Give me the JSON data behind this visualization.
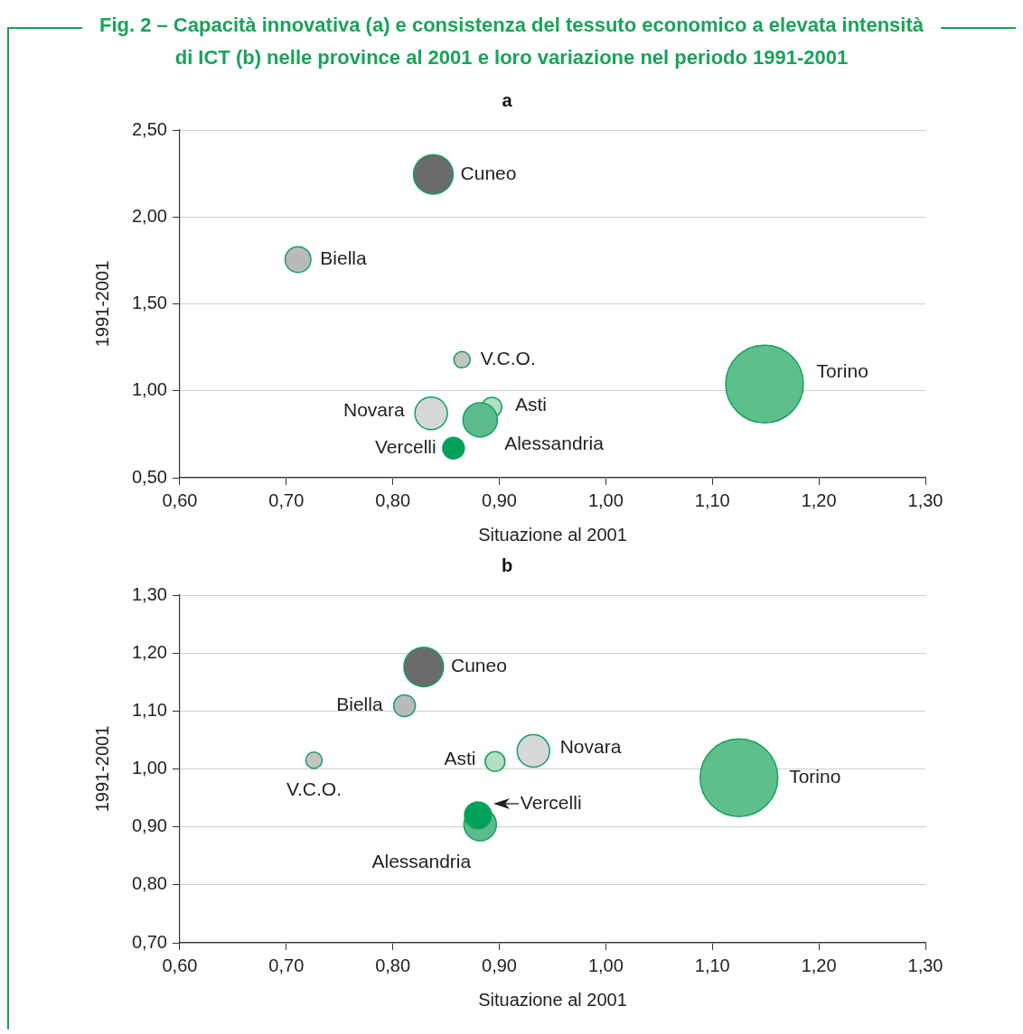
{
  "chart_data": [
    {
      "type": "bubble",
      "title": "Fig. 2 – Capacità innovativa (a) e consistenza del tessuto economico a elevata intensità di ICT (b) nelle province al 2001 e loro variazione nel periodo 1991-2001",
      "subtitle": "a",
      "xlabel": "Situazione al 2001",
      "ylabel": "1991-2001",
      "xlim": [
        0.6,
        1.3
      ],
      "ylim": [
        0.5,
        2.5
      ],
      "xticks": [
        {
          "value": 0.6,
          "label": "0,60"
        },
        {
          "value": 0.7,
          "label": "0,70"
        },
        {
          "value": 0.8,
          "label": "0,80"
        },
        {
          "value": 0.9,
          "label": "0,90"
        },
        {
          "value": 1.0,
          "label": "1,00"
        },
        {
          "value": 1.1,
          "label": "1,10"
        },
        {
          "value": 1.2,
          "label": "1,20"
        },
        {
          "value": 1.3,
          "label": "1,30"
        }
      ],
      "yticks": [
        {
          "value": 0.5,
          "label": "0,50"
        },
        {
          "value": 1.0,
          "label": "1,00"
        },
        {
          "value": 1.5,
          "label": "1,50"
        },
        {
          "value": 2.0,
          "label": "2,00"
        },
        {
          "value": 2.5,
          "label": "2,50"
        }
      ],
      "grid": "y",
      "series": [
        {
          "name": "Cuneo",
          "color": "#6b6b6b",
          "x": [
            0.838
          ],
          "values": [
            2.245
          ],
          "sizes": [
            0.26
          ]
        },
        {
          "name": "Biella",
          "color": "#b9babc",
          "x": [
            0.711
          ],
          "values": [
            1.755
          ],
          "sizes": [
            0.11
          ]
        },
        {
          "name": "V.C.O.",
          "color": "#c4c4c4",
          "x": [
            0.865
          ],
          "values": [
            1.179
          ],
          "sizes": [
            0.044
          ]
        },
        {
          "name": "Torino",
          "color": "#5fbf8c",
          "x": [
            1.149
          ],
          "values": [
            1.039
          ],
          "sizes": [
            1
          ]
        },
        {
          "name": "Novara",
          "color": "#d6d7d9",
          "x": [
            0.836
          ],
          "values": [
            0.87
          ],
          "sizes": [
            0.175
          ]
        },
        {
          "name": "Vercelli",
          "color": "#00a25a",
          "x": [
            0.857
          ],
          "values": [
            0.67
          ],
          "sizes": [
            0.078
          ]
        },
        {
          "name": "Alessandria",
          "color": "#5cbb8c",
          "x": [
            0.882
          ],
          "values": [
            0.833
          ],
          "sizes": [
            0.195
          ]
        },
        {
          "name": "Asti",
          "color": "#b4dfc5",
          "x": [
            0.893
          ],
          "values": [
            0.906
          ],
          "sizes": [
            0.065
          ]
        }
      ]
    },
    {
      "type": "bubble",
      "title": "b",
      "xlabel": "Situazione al 2001",
      "ylabel": "1991-2001",
      "xlim": [
        0.6,
        1.3
      ],
      "ylim": [
        0.7,
        1.3
      ],
      "xticks": [
        {
          "value": 0.6,
          "label": "0,60"
        },
        {
          "value": 0.7,
          "label": "0,70"
        },
        {
          "value": 0.8,
          "label": "0,80"
        },
        {
          "value": 0.9,
          "label": "0,90"
        },
        {
          "value": 1.0,
          "label": "1,00"
        },
        {
          "value": 1.1,
          "label": "1,10"
        },
        {
          "value": 1.2,
          "label": "1,20"
        },
        {
          "value": 1.3,
          "label": "1,30"
        }
      ],
      "yticks": [
        {
          "value": 0.7,
          "label": "0,70"
        },
        {
          "value": 0.8,
          "label": "0,80"
        },
        {
          "value": 0.9,
          "label": "0,90"
        },
        {
          "value": 1.0,
          "label": "1,00"
        },
        {
          "value": 1.1,
          "label": "1,10"
        },
        {
          "value": 1.2,
          "label": "1,20"
        },
        {
          "value": 1.3,
          "label": "1,30"
        }
      ],
      "grid": "y",
      "series": [
        {
          "name": "Cuneo",
          "color": "#6b6b6b",
          "x": [
            0.829
          ],
          "values": [
            1.176
          ],
          "sizes": [
            0.26
          ]
        },
        {
          "name": "Biella",
          "color": "#b9babc",
          "x": [
            0.811
          ],
          "values": [
            1.109
          ],
          "sizes": [
            0.078
          ]
        },
        {
          "name": "V.C.O.",
          "color": "#c4c4c4",
          "x": [
            0.726
          ],
          "values": [
            1.015
          ],
          "sizes": [
            0.044
          ]
        },
        {
          "name": "Torino",
          "color": "#5fbf8c",
          "x": [
            1.125
          ],
          "values": [
            0.985
          ],
          "sizes": [
            1
          ]
        },
        {
          "name": "Novara",
          "color": "#d6d7d9",
          "x": [
            0.932
          ],
          "values": [
            1.031
          ],
          "sizes": [
            0.175
          ]
        },
        {
          "name": "Asti",
          "color": "#b4dfc5",
          "x": [
            0.896
          ],
          "values": [
            1.013
          ],
          "sizes": [
            0.065
          ]
        },
        {
          "name": "Vercelli",
          "color": "#00a25a",
          "x": [
            0.88
          ],
          "values": [
            0.92
          ],
          "sizes": [
            0.12
          ]
        },
        {
          "name": "Alessandria",
          "color": "#5cbb8c",
          "x": [
            0.882
          ],
          "values": [
            0.904
          ],
          "sizes": [
            0.175
          ]
        }
      ]
    }
  ]
}
